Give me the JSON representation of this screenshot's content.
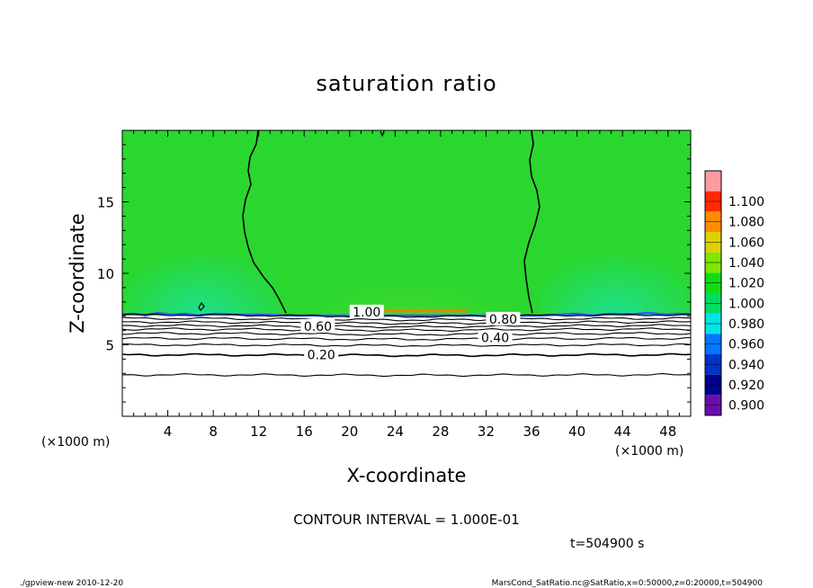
{
  "chart_data": {
    "type": "heatmap",
    "title": "saturation ratio",
    "xlabel": "X-coordinate",
    "ylabel": "Z-coordinate",
    "x_unit_left": "(×1000 m)",
    "x_unit_right": "(×1000 m)",
    "xlim": [
      0,
      50
    ],
    "ylim": [
      0,
      20
    ],
    "xticks": [
      4,
      8,
      12,
      16,
      20,
      24,
      28,
      32,
      36,
      40,
      44,
      48
    ],
    "yticks": [
      5,
      10,
      15
    ],
    "colorbar": {
      "levels": [
        0.9,
        0.92,
        0.94,
        0.96,
        0.98,
        1.0,
        1.02,
        1.04,
        1.06,
        1.08,
        1.1
      ],
      "labels": [
        "0.900",
        "0.920",
        "0.940",
        "0.960",
        "0.980",
        "1.000",
        "1.020",
        "1.040",
        "1.060",
        "1.080",
        "1.100"
      ],
      "colors": [
        "#6a0dad",
        "#00008b",
        "#0033cc",
        "#0077ff",
        "#00e5e5",
        "#00dd66",
        "#11dd11",
        "#7fe600",
        "#e0d000",
        "#ff8c00",
        "#ff2a00",
        "#ff9aa0"
      ]
    },
    "contour_labels": [
      {
        "text": "1.00",
        "x": 21.5,
        "z": 7.3
      },
      {
        "text": "0.80",
        "x": 33.5,
        "z": 6.8
      },
      {
        "text": "0.60",
        "x": 17.2,
        "z": 6.3
      },
      {
        "text": "0.40",
        "x": 32.8,
        "z": 5.5
      },
      {
        "text": "0.20",
        "x": 17.5,
        "z": 4.3
      }
    ],
    "contour_levels_below": [
      {
        "level": 1.0,
        "z": 7.1
      },
      {
        "level": 0.9,
        "z": 6.85
      },
      {
        "level": 0.8,
        "z": 6.6
      },
      {
        "level": 0.7,
        "z": 6.35
      },
      {
        "level": 0.6,
        "z": 6.1
      },
      {
        "level": 0.5,
        "z": 5.8
      },
      {
        "level": 0.4,
        "z": 5.45
      },
      {
        "level": 0.3,
        "z": 5.0
      },
      {
        "level": 0.2,
        "z": 4.3
      },
      {
        "level": 0.1,
        "z": 2.9
      }
    ],
    "contour_interval": "CONTOUR INTERVAL = 1.000E-01",
    "time": "t=504900 s"
  },
  "footer": {
    "left": "./gpview-new  2010-12-20",
    "right": "MarsCond_SatRatio.nc@SatRatio,x=0:50000,z=0:20000,t=504900"
  }
}
